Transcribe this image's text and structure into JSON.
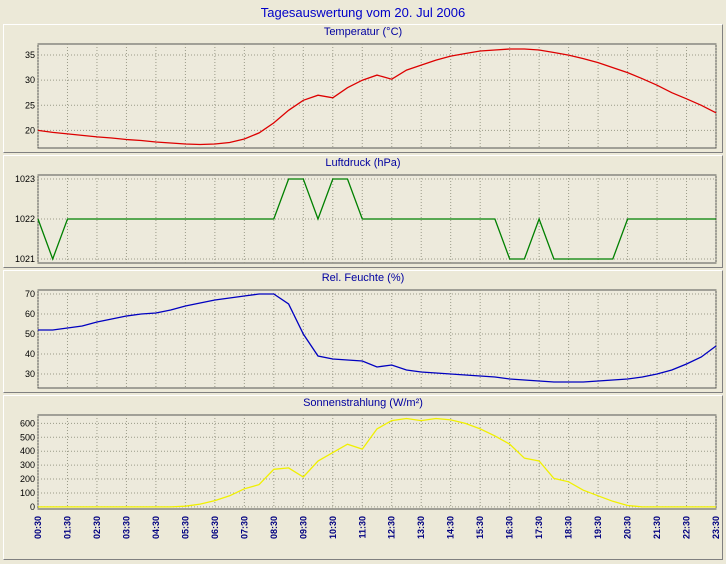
{
  "page": {
    "title": "Tagesauswertung vom 20. Jul 2006"
  },
  "style": {
    "page_bg": "#ECE9D8",
    "plot_bg": "#EDEADC",
    "grid_color": "#9A9A88",
    "frame_color": "#555555",
    "ylabel_color": "#000000",
    "xlabel_color": "#000080",
    "title_color": "#0000C8",
    "chart_title_color": "#0000A0"
  },
  "time_labels": [
    "00:30",
    "01:30",
    "02:30",
    "03:30",
    "04:30",
    "05:30",
    "06:30",
    "07:30",
    "08:30",
    "09:30",
    "10:30",
    "11:30",
    "12:30",
    "13:30",
    "14:30",
    "15:30",
    "16:30",
    "17:30",
    "18:30",
    "19:30",
    "20:30",
    "21:30",
    "22:30",
    "23:30"
  ],
  "chart_data": [
    {
      "type": "line",
      "title": "Temperatur (°C)",
      "color": "#DD0000",
      "xlabel": "",
      "ylabel": "",
      "x_step": 0.5,
      "xlim": [
        0.5,
        23.5
      ],
      "ylim": [
        16.5,
        37.2
      ],
      "yticks": [
        20,
        25,
        30,
        35
      ],
      "grid": true,
      "values": [
        20.0,
        19.6,
        19.3,
        19.0,
        18.7,
        18.5,
        18.2,
        18.0,
        17.7,
        17.5,
        17.3,
        17.2,
        17.3,
        17.6,
        18.3,
        19.5,
        21.5,
        24.0,
        26.0,
        27.0,
        26.5,
        28.5,
        30.0,
        31.0,
        30.2,
        32.0,
        33.0,
        34.0,
        34.8,
        35.3,
        35.8,
        36.0,
        36.2,
        36.2,
        36.0,
        35.5,
        35.0,
        34.3,
        33.5,
        32.5,
        31.5,
        30.3,
        29.0,
        27.5,
        26.3,
        25.0,
        23.5
      ]
    },
    {
      "type": "line",
      "title": "Luftdruck (hPa)",
      "color": "#008000",
      "xlabel": "",
      "ylabel": "",
      "x_step": 0.5,
      "xlim": [
        0.5,
        23.5
      ],
      "ylim": [
        1020.9,
        1023.1
      ],
      "yticks": [
        1021,
        1022,
        1023
      ],
      "grid": true,
      "values": [
        1022,
        1021,
        1022,
        1022,
        1022,
        1022,
        1022,
        1022,
        1022,
        1022,
        1022,
        1022,
        1022,
        1022,
        1022,
        1022,
        1022,
        1023,
        1023,
        1022,
        1023,
        1023,
        1022,
        1022,
        1022,
        1022,
        1022,
        1022,
        1022,
        1022,
        1022,
        1022,
        1021,
        1021,
        1022,
        1021,
        1021,
        1021,
        1021,
        1021,
        1022,
        1022,
        1022,
        1022,
        1022,
        1022,
        1022
      ]
    },
    {
      "type": "line",
      "title": "Rel. Feuchte (%)",
      "color": "#0000C0",
      "xlabel": "",
      "ylabel": "",
      "x_step": 0.5,
      "xlim": [
        0.5,
        23.5
      ],
      "ylim": [
        23,
        72
      ],
      "yticks": [
        30,
        40,
        50,
        60,
        70
      ],
      "grid": true,
      "values": [
        52,
        52,
        53,
        54,
        56,
        57.5,
        59,
        60,
        60.5,
        62,
        64,
        65.5,
        67,
        68,
        69,
        70,
        70,
        65,
        50,
        39,
        37.5,
        37,
        36.5,
        33.5,
        34.5,
        32,
        31,
        30.5,
        30,
        29.5,
        29,
        28.5,
        27.5,
        27,
        26.5,
        26,
        26,
        26,
        26.5,
        27,
        27.5,
        28.5,
        30,
        32,
        35,
        38.5,
        44
      ]
    },
    {
      "type": "line",
      "title": "Sonnenstrahlung (W/m²)",
      "color": "#F0F000",
      "xlabel": "",
      "ylabel": "",
      "x_step": 0.5,
      "xlim": [
        0.5,
        23.5
      ],
      "ylim": [
        -15,
        660
      ],
      "yticks": [
        0,
        100,
        200,
        300,
        400,
        500,
        600
      ],
      "grid": true,
      "values": [
        0,
        0,
        0,
        0,
        0,
        0,
        0,
        0,
        0,
        0,
        5,
        20,
        45,
        80,
        130,
        160,
        270,
        280,
        215,
        330,
        390,
        450,
        415,
        560,
        620,
        635,
        620,
        635,
        625,
        600,
        560,
        510,
        450,
        350,
        330,
        205,
        180,
        120,
        80,
        40,
        10,
        0,
        0,
        0,
        0,
        0,
        0
      ]
    }
  ]
}
